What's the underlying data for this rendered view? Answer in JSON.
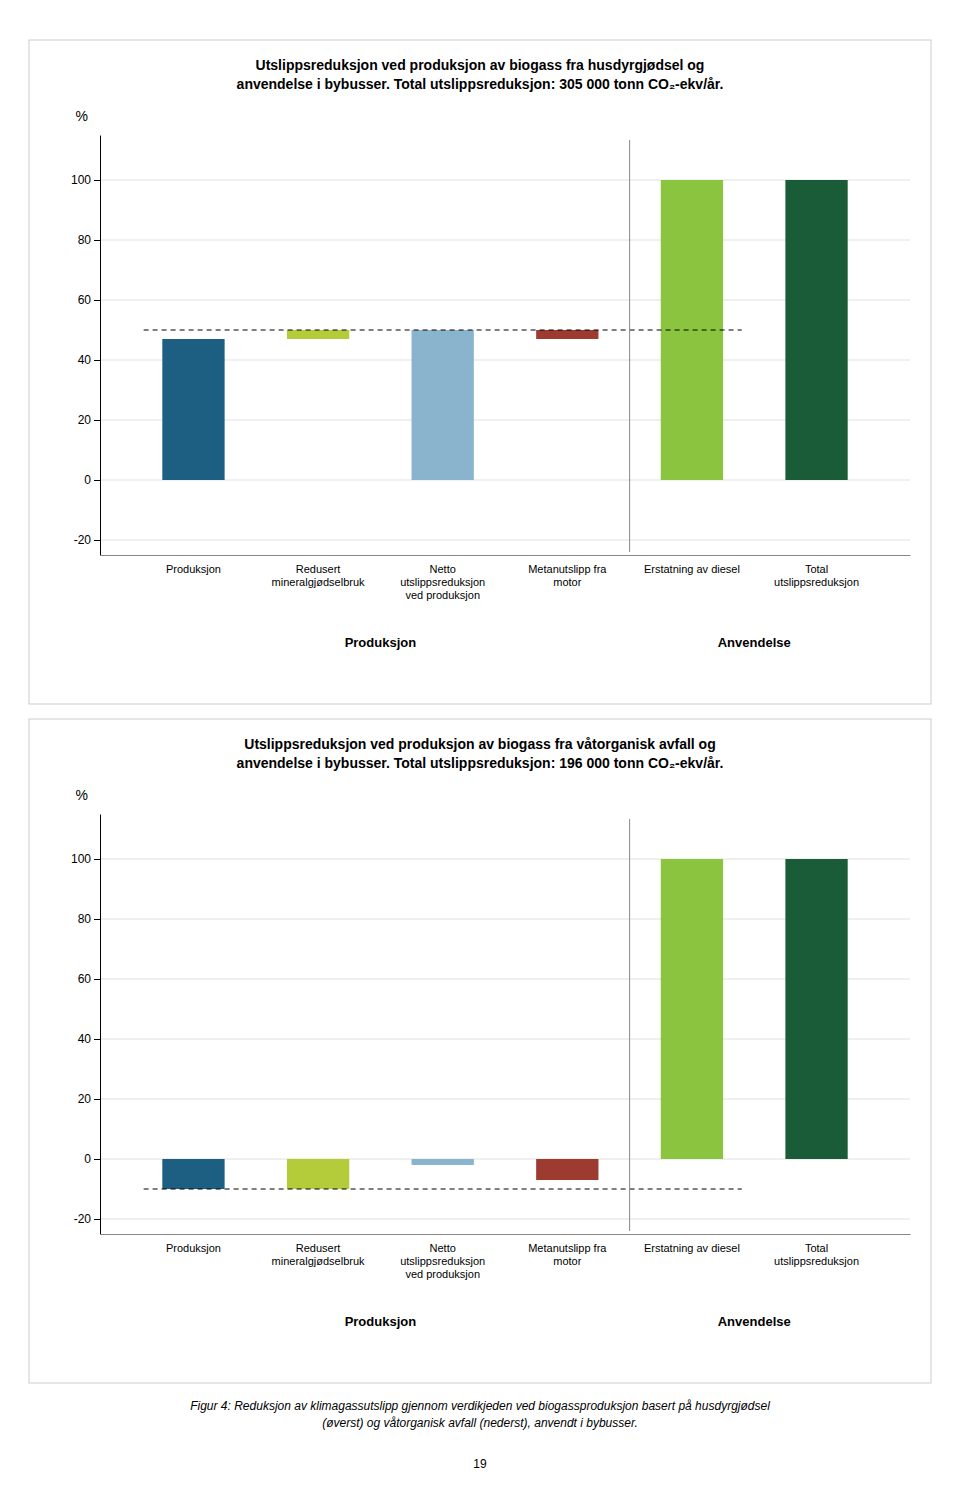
{
  "chart_data": [
    {
      "type": "bar",
      "title": "Utslippsreduksjon ved produksjon av biogass fra husdyrgjødsel og\nanvendelse i bybusser. Total utslippsreduksjon: 305 000 tonn CO₂-ekv/år.",
      "categories": [
        "Produksjon",
        "Redusert\nmineralgjødselbruk",
        "Netto\nutslippsreduksjon\nved produksjon",
        "Metanutslipp fra\nmotor",
        "Erstatning av diesel",
        "Total\nutslippsreduksjon"
      ],
      "values": [
        47,
        3,
        50,
        3,
        100,
        100
      ],
      "bottoms": [
        0,
        47,
        0,
        47,
        0,
        0
      ],
      "colors": [
        "#1c5f83",
        "#b5cc3a",
        "#8ab4cd",
        "#9e3b30",
        "#8bc43f",
        "#1a5c38"
      ],
      "reference_line": 50,
      "ylim": [
        -25,
        115
      ],
      "yticks": [
        -20,
        0,
        20,
        40,
        60,
        80,
        100
      ],
      "y_label": "%",
      "grid": true,
      "section_labels": [
        "Produksjon",
        "Anvendelse"
      ]
    },
    {
      "type": "bar",
      "title": "Utslippsreduksjon ved produksjon av biogass fra våtorganisk avfall og\nanvendelse i bybusser. Total utslippsreduksjon: 196 000 tonn CO₂-ekv/år.",
      "categories": [
        "Produksjon",
        "Redusert\nmineralgjødselbruk",
        "Netto\nutslippsreduksjon\nved produksjon",
        "Metanutslipp fra\nmotor",
        "Erstatning av diesel",
        "Total\nutslippsreduksjon"
      ],
      "values": [
        -10,
        -10,
        -2,
        -7,
        100,
        100
      ],
      "bottoms": [
        0,
        0,
        0,
        0,
        0,
        0
      ],
      "colors": [
        "#1c5f83",
        "#b5cc3a",
        "#8ab4cd",
        "#9e3b30",
        "#8bc43f",
        "#1a5c38"
      ],
      "reference_line": -10,
      "ylim": [
        -25,
        115
      ],
      "yticks": [
        -20,
        0,
        20,
        40,
        60,
        80,
        100
      ],
      "y_label": "%",
      "grid": true,
      "section_labels": [
        "Produksjon",
        "Anvendelse"
      ]
    }
  ],
  "caption": "Figur 4: Reduksjon av klimagassutslipp gjennom verdikjeden ved biogassproduksjon basert på husdyrgjødsel\n(øverst) og våtorganisk avfall (nederst), anvendt i bybusser.",
  "page_number": "19"
}
